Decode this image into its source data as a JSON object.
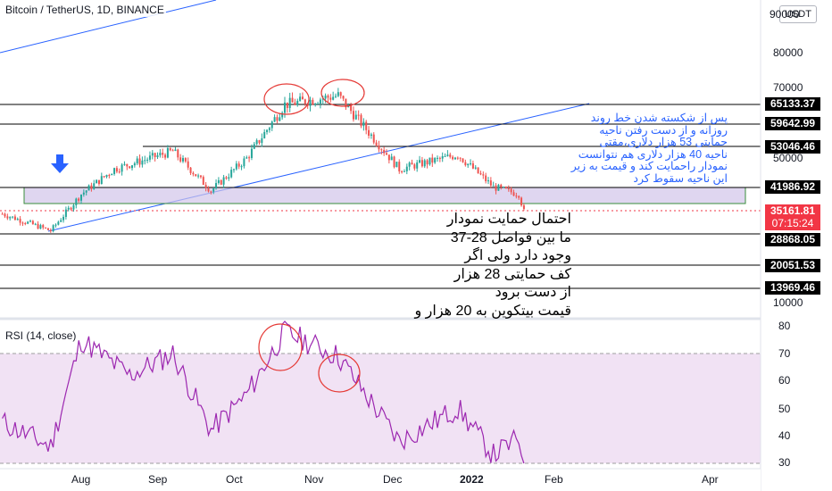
{
  "header": {
    "symbol_title": "Bitcoin / TetherUS, 1D, BINANCE",
    "currency": "USDT"
  },
  "rsi": {
    "title": "RSI (14, close)",
    "upper_band": 70,
    "lower_band": 30,
    "band_color": "#e1bee7",
    "line_color": "#9c27b0"
  },
  "annotations": {
    "persian_note_blue": [
      "پس از شکسته شدن خط روند",
      "روزانه و از دست رفتن ناحیه",
      "حمایتی 53 هزار دلاری،مقتی",
      "ناحیه 40 هزار دلاری هم نتوانست",
      "نمودار راحمایت کند و قیمت به زیر",
      "این ناحیه سقوط کرد"
    ],
    "persian_note_black": [
      "احتمال حمایت نمودار",
      "ما بین فواصل 28-37",
      "وجود دارد ولی اگر",
      "کف حمایتی 28 هزار",
      "از دست برود",
      "قیمت بیتکوین به 20 هزار و"
    ]
  },
  "colors": {
    "bull": "#26a69a",
    "bear": "#ef5350",
    "trendline": "#2962ff",
    "support_zone": "#d1c4e9",
    "support_zone_border": "#388e3c",
    "rsi_circle": "#e53935",
    "level_line": "#000000",
    "current_price": "#f23645"
  },
  "chart_data": [
    {
      "type": "candlestick",
      "title": "Bitcoin / TetherUS, 1D, BINANCE",
      "y_axis_ticks": [
        10000,
        20000,
        30000,
        40000,
        50000,
        60000,
        70000,
        80000,
        90000
      ],
      "ylim": [
        8000,
        91000
      ],
      "x_axis_ticks": [
        "Aug",
        "Sep",
        "Oct",
        "Nov",
        "Dec",
        "2022",
        "Feb",
        "Apr"
      ],
      "horizontal_levels": [
        65133.37,
        59642.99,
        53046.46,
        41986.92,
        28868.05,
        20051.53,
        13969.46
      ],
      "current_price": {
        "value": 35161.81,
        "countdown": "07:15:24"
      },
      "support_zone": [
        37500,
        41986.92
      ],
      "approx_price_path": [
        {
          "date": "2021-07-01",
          "price": 34500
        },
        {
          "date": "2021-07-20",
          "price": 29800
        },
        {
          "date": "2021-08-01",
          "price": 40000
        },
        {
          "date": "2021-08-14",
          "price": 47000
        },
        {
          "date": "2021-09-06",
          "price": 52000
        },
        {
          "date": "2021-09-21",
          "price": 41000
        },
        {
          "date": "2021-10-05",
          "price": 50000
        },
        {
          "date": "2021-10-20",
          "price": 65000
        },
        {
          "date": "2021-11-10",
          "price": 67500
        },
        {
          "date": "2021-12-04",
          "price": 47000
        },
        {
          "date": "2021-12-27",
          "price": 51000
        },
        {
          "date": "2022-01-10",
          "price": 42000
        },
        {
          "date": "2022-01-20",
          "price": 40000
        },
        {
          "date": "2022-01-22",
          "price": 35161.81
        }
      ]
    },
    {
      "type": "line",
      "title": "RSI (14, close)",
      "y_axis_ticks": [
        30,
        40,
        50,
        60,
        70,
        80
      ],
      "ylim": [
        29,
        83
      ],
      "approx_series": [
        {
          "date": "2021-07-01",
          "value": 45
        },
        {
          "date": "2021-07-20",
          "value": 36
        },
        {
          "date": "2021-08-01",
          "value": 75
        },
        {
          "date": "2021-08-20",
          "value": 62
        },
        {
          "date": "2021-09-06",
          "value": 70
        },
        {
          "date": "2021-09-21",
          "value": 42
        },
        {
          "date": "2021-10-05",
          "value": 55
        },
        {
          "date": "2021-10-20",
          "value": 78
        },
        {
          "date": "2021-11-10",
          "value": 69
        },
        {
          "date": "2021-12-04",
          "value": 38
        },
        {
          "date": "2021-12-27",
          "value": 50
        },
        {
          "date": "2022-01-10",
          "value": 33
        },
        {
          "date": "2022-01-20",
          "value": 39
        },
        {
          "date": "2022-01-22",
          "value": 30
        }
      ]
    }
  ]
}
